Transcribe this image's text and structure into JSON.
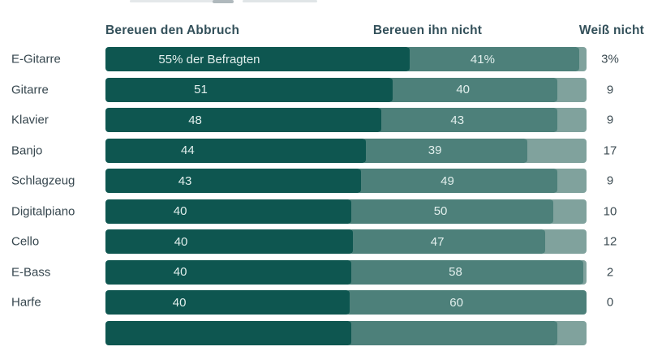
{
  "page": {
    "background": "#ffffff",
    "note_title_cropped": true
  },
  "chart_data": {
    "type": "bar",
    "orientation": "horizontal",
    "stacked": true,
    "title": "",
    "categories": [
      "E-Gitarre",
      "Gitarre",
      "Klavier",
      "Banjo",
      "Schlagzeug",
      "Digitalpiano",
      "Cello",
      "E-Bass",
      "Harfe"
    ],
    "series": [
      {
        "name": "Bereuen den Abbruch",
        "color": "#0e5650",
        "values": [
          55,
          51,
          48,
          44,
          43,
          40,
          40,
          40,
          40
        ],
        "display_labels": [
          "55% der Befragten",
          "51",
          "48",
          "44",
          "43",
          "40",
          "40",
          "40",
          "40"
        ]
      },
      {
        "name": "Bereuen ihn nicht",
        "color": "#4d807a",
        "values": [
          41,
          40,
          43,
          39,
          49,
          50,
          47,
          58,
          60
        ],
        "display_labels": [
          "41%",
          "40",
          "43",
          "39",
          "49",
          "50",
          "47",
          "58",
          "60"
        ]
      },
      {
        "name": "Weiß nicht",
        "color": "#80a29d",
        "values": [
          3,
          9,
          9,
          17,
          9,
          10,
          12,
          2,
          0
        ],
        "display_labels": [
          "3%",
          "9",
          "9",
          "17",
          "9",
          "10",
          "12",
          "2",
          "0"
        ]
      }
    ],
    "cutoff_row": {
      "values": [
        40,
        51,
        9
      ],
      "display_labels": [
        "",
        "",
        ""
      ]
    },
    "value_label_text_color": "#e2efed",
    "category_label_color": "#37474f",
    "header_color": "#33505a",
    "legend_position": "column-headers-above-bars",
    "grid": false,
    "xlim": [
      0,
      100
    ]
  }
}
